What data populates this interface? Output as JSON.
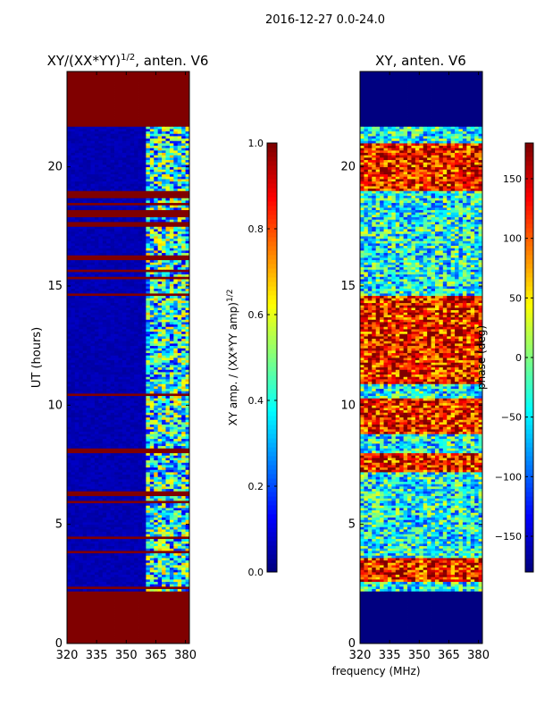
{
  "suptitle": "2016-12-27 0.0-24.0",
  "shared_xlabel": "frequency (MHz)",
  "chart_data": [
    {
      "type": "heatmap",
      "title": "XY/(XX*YY)^{1/2}, anten. V6",
      "title_main": "XY/(XX*YY)",
      "title_sup": "1/2",
      "title_rest": ", anten. V6",
      "xlabel": "",
      "ylabel": "UT (hours)",
      "xlim": [
        320,
        382
      ],
      "ylim": [
        0,
        24
      ],
      "xticks": [
        320,
        335,
        350,
        365,
        380
      ],
      "yticks": [
        0,
        5,
        10,
        15,
        20
      ],
      "colorbar": {
        "label": "XY amp. / (XX*YY amp)^{1/2}",
        "label_main": "XY amp. / (XX*YY amp)",
        "label_sup": "1/2",
        "range": [
          0.0,
          1.0
        ],
        "ticks": [
          0.0,
          0.2,
          0.4,
          0.6,
          0.8,
          1.0
        ],
        "tick_labels": [
          "0.0",
          "0.2",
          "0.4",
          "0.6",
          "0.8",
          "1.0"
        ],
        "colormap": "jet"
      },
      "flagged_value": 1.0,
      "flagged_hours": [
        [
          0.0,
          2.2
        ],
        [
          2.35,
          2.45
        ],
        [
          3.8,
          3.95
        ],
        [
          4.4,
          4.55
        ],
        [
          5.9,
          6.0
        ],
        [
          6.2,
          6.4
        ],
        [
          8.05,
          8.2
        ],
        [
          10.4,
          10.55
        ],
        [
          14.6,
          14.75
        ],
        [
          15.3,
          15.45
        ],
        [
          15.6,
          15.75
        ],
        [
          16.15,
          16.3
        ],
        [
          17.55,
          17.7
        ],
        [
          17.95,
          18.2
        ],
        [
          18.4,
          18.55
        ],
        [
          18.7,
          19.0
        ],
        [
          21.7,
          24.0
        ]
      ],
      "typical_value_low_band": 0.05,
      "typical_value_high_band": 0.4,
      "high_band_start_mhz": 361
    },
    {
      "type": "heatmap",
      "title": "XY, anten. V6",
      "xlabel": "frequency (MHz)",
      "ylabel": "",
      "xlim": [
        320,
        382
      ],
      "ylim": [
        0,
        24
      ],
      "xticks": [
        320,
        335,
        350,
        365,
        380
      ],
      "yticks": [
        0,
        5,
        10,
        15,
        20
      ],
      "colorbar": {
        "label": "phase (deg)",
        "range": [
          -180,
          180
        ],
        "ticks": [
          -150,
          -100,
          -50,
          0,
          50,
          100,
          150
        ],
        "tick_labels": [
          "−150",
          "−100",
          "−50",
          "0",
          "50",
          "100",
          "150"
        ],
        "colormap": "jet"
      },
      "flagged_value": -180,
      "flagged_hours": [
        [
          0.0,
          2.2
        ],
        [
          21.7,
          24.0
        ]
      ],
      "warm_phase_hours": [
        [
          2.6,
          3.6
        ],
        [
          7.2,
          8.0
        ],
        [
          8.8,
          10.3
        ],
        [
          10.9,
          14.6
        ],
        [
          19.0,
          21.0
        ]
      ],
      "typical_phase_warm": 130,
      "typical_phase_cool": -40
    }
  ]
}
